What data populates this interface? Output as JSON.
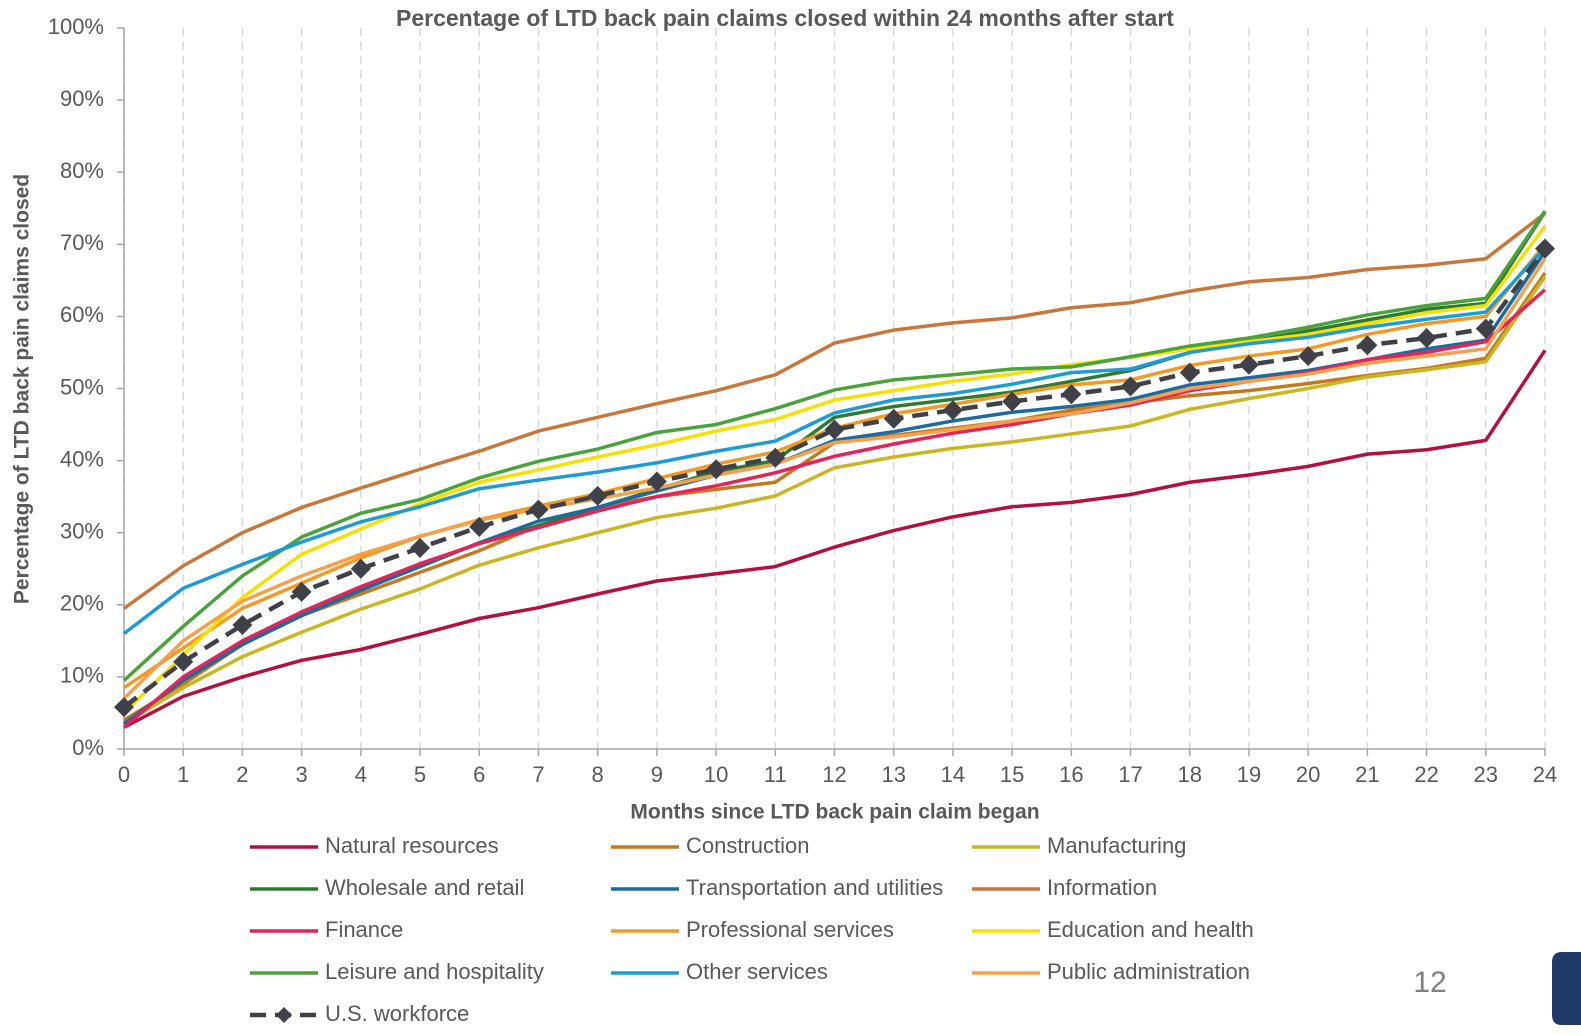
{
  "chart_data": {
    "type": "line",
    "title": "Percentage of LTD back pain claims closed within 24 months after start",
    "x_label": "Months since LTD back pain claim began",
    "y_label": "Percentage of LTD back pain claims closed",
    "x": [
      0,
      1,
      2,
      3,
      4,
      5,
      6,
      7,
      8,
      9,
      10,
      11,
      12,
      13,
      14,
      15,
      16,
      17,
      18,
      19,
      20,
      21,
      22,
      23,
      24
    ],
    "xlim": [
      0,
      24
    ],
    "xticks": [
      0,
      1,
      2,
      3,
      4,
      5,
      6,
      7,
      8,
      9,
      10,
      11,
      12,
      13,
      14,
      15,
      16,
      17,
      18,
      19,
      20,
      21,
      22,
      23,
      24
    ],
    "ylim": [
      0,
      100
    ],
    "yticks": [
      {
        "value": 0,
        "label": "0%"
      },
      {
        "value": 10,
        "label": "10%"
      },
      {
        "value": 20,
        "label": "20%"
      },
      {
        "value": 30,
        "label": "30%"
      },
      {
        "value": 40,
        "label": "40%"
      },
      {
        "value": 50,
        "label": "50%"
      },
      {
        "value": 60,
        "label": "60%"
      },
      {
        "value": 70,
        "label": "70%"
      },
      {
        "value": 80,
        "label": "80%"
      },
      {
        "value": 90,
        "label": "90%"
      },
      {
        "value": 100,
        "label": "100%"
      }
    ],
    "grid": "x",
    "series": [
      {
        "name": "Natural resources",
        "color": "#b3103f",
        "values": [
          3,
          7.3,
          10,
          12.3,
          13.8,
          15.9,
          18.1,
          19.6,
          21.5,
          23.3,
          24.3,
          25.3,
          28,
          30.3,
          32.2,
          33.6,
          34.2,
          35.3,
          37,
          38,
          39.2,
          40.9,
          41.5,
          42.8,
          55.3
        ]
      },
      {
        "name": "Construction",
        "color": "#c47a1c",
        "values": [
          4,
          9,
          14.5,
          18.5,
          21.5,
          24.5,
          27.5,
          31,
          33.5,
          35,
          36,
          37,
          42.5,
          43.5,
          44.5,
          45.5,
          47,
          48,
          49,
          49.7,
          50.7,
          51.8,
          52.8,
          54.2,
          66
        ]
      },
      {
        "name": "Manufacturing",
        "color": "#c9b620",
        "values": [
          3.5,
          8.5,
          12.8,
          16.2,
          19.4,
          22.2,
          25.5,
          27.9,
          30,
          32.1,
          33.4,
          35.1,
          39,
          40.5,
          41.7,
          42.6,
          43.7,
          44.8,
          47.1,
          48.6,
          50,
          51.6,
          52.6,
          53.7,
          65.5
        ]
      },
      {
        "name": "Wholesale and retail",
        "color": "#2e7a30",
        "values": [
          3.5,
          9.5,
          14.5,
          19,
          22.5,
          25.5,
          28.5,
          31,
          33.5,
          36,
          38.5,
          40,
          46,
          47.5,
          48.5,
          49.5,
          51,
          52.5,
          55,
          56.5,
          58,
          59.5,
          61,
          61.8,
          74.5
        ]
      },
      {
        "name": "Transportation and utilities",
        "color": "#1a6c9e",
        "values": [
          3.5,
          9.5,
          14.5,
          18.5,
          22,
          25.3,
          28.6,
          31.6,
          33.5,
          35.8,
          38,
          39.5,
          42.8,
          44,
          45.5,
          46.7,
          47.5,
          48.5,
          50.5,
          51.5,
          52.5,
          54,
          55.5,
          56.7,
          69
        ]
      },
      {
        "name": "Information",
        "color": "#c8763a",
        "values": [
          19.5,
          25.4,
          30,
          33.5,
          36.2,
          38.8,
          41.3,
          44.1,
          46,
          47.9,
          49.7,
          51.9,
          56.3,
          58.1,
          59.1,
          59.8,
          61.2,
          61.9,
          63.5,
          64.8,
          65.4,
          66.5,
          67.1,
          68,
          74.3
        ]
      },
      {
        "name": "Finance",
        "color": "#e2245a",
        "values": [
          3,
          10,
          15,
          19,
          22.5,
          25.7,
          28.5,
          30.7,
          33,
          35,
          36.5,
          38.3,
          40.6,
          42.3,
          43.8,
          45,
          46.5,
          47.7,
          49.7,
          51,
          52.2,
          54,
          55,
          56.5,
          63.7
        ]
      },
      {
        "name": "Professional services",
        "color": "#f29a25",
        "values": [
          8.5,
          14,
          19.5,
          23,
          26.5,
          29.5,
          31.8,
          33.7,
          35.4,
          37.5,
          39.5,
          41.2,
          44.5,
          46.5,
          47.8,
          49.2,
          50.5,
          51.2,
          53.2,
          54.5,
          55.5,
          57.5,
          59,
          60,
          70
        ]
      },
      {
        "name": "Education and health",
        "color": "#f7e000",
        "values": [
          5,
          13,
          21,
          27,
          30.5,
          34,
          37,
          38.7,
          40.5,
          42.2,
          44.1,
          45.7,
          48.4,
          49.7,
          51,
          52,
          53.3,
          54.3,
          55.5,
          56.5,
          57.5,
          59,
          60.5,
          61.5,
          72.5
        ]
      },
      {
        "name": "Leisure and hospitality",
        "color": "#4aa23a",
        "values": [
          9.5,
          17,
          24,
          29.4,
          32.7,
          34.6,
          37.6,
          39.9,
          41.6,
          43.9,
          45,
          47.2,
          49.8,
          51.2,
          51.9,
          52.7,
          53,
          54.4,
          55.9,
          57,
          58.5,
          60.2,
          61.5,
          62.5,
          74.6
        ]
      },
      {
        "name": "Other services",
        "color": "#1e9bd7",
        "values": [
          16,
          22.3,
          25.6,
          28.7,
          31.5,
          33.6,
          36.1,
          37.3,
          38.4,
          39.7,
          41.3,
          42.7,
          46.6,
          48.4,
          49.3,
          50.6,
          52.2,
          52.7,
          55,
          56.2,
          57.1,
          58.5,
          59.6,
          60.6,
          69.5
        ]
      },
      {
        "name": "Public administration",
        "color": "#f5a04a",
        "values": [
          7,
          15,
          20.5,
          24,
          27,
          29.5,
          31.7,
          33.3,
          34.7,
          36.2,
          38,
          39.5,
          42.5,
          43.3,
          44.3,
          45.5,
          46.5,
          48,
          50,
          51,
          52,
          53.5,
          54.5,
          55.5,
          68
        ]
      },
      {
        "name": "U.S. workforce",
        "color": "#404048",
        "dashed": true,
        "marker": "diamond",
        "values": [
          5.8,
          12.1,
          17.2,
          21.8,
          25,
          27.9,
          30.8,
          33.2,
          35.1,
          37.1,
          38.8,
          40.4,
          44.3,
          45.8,
          47,
          48.2,
          49.2,
          50.3,
          52.2,
          53.3,
          54.5,
          56,
          57,
          58.3,
          69.4
        ]
      }
    ]
  },
  "page_number": "12"
}
